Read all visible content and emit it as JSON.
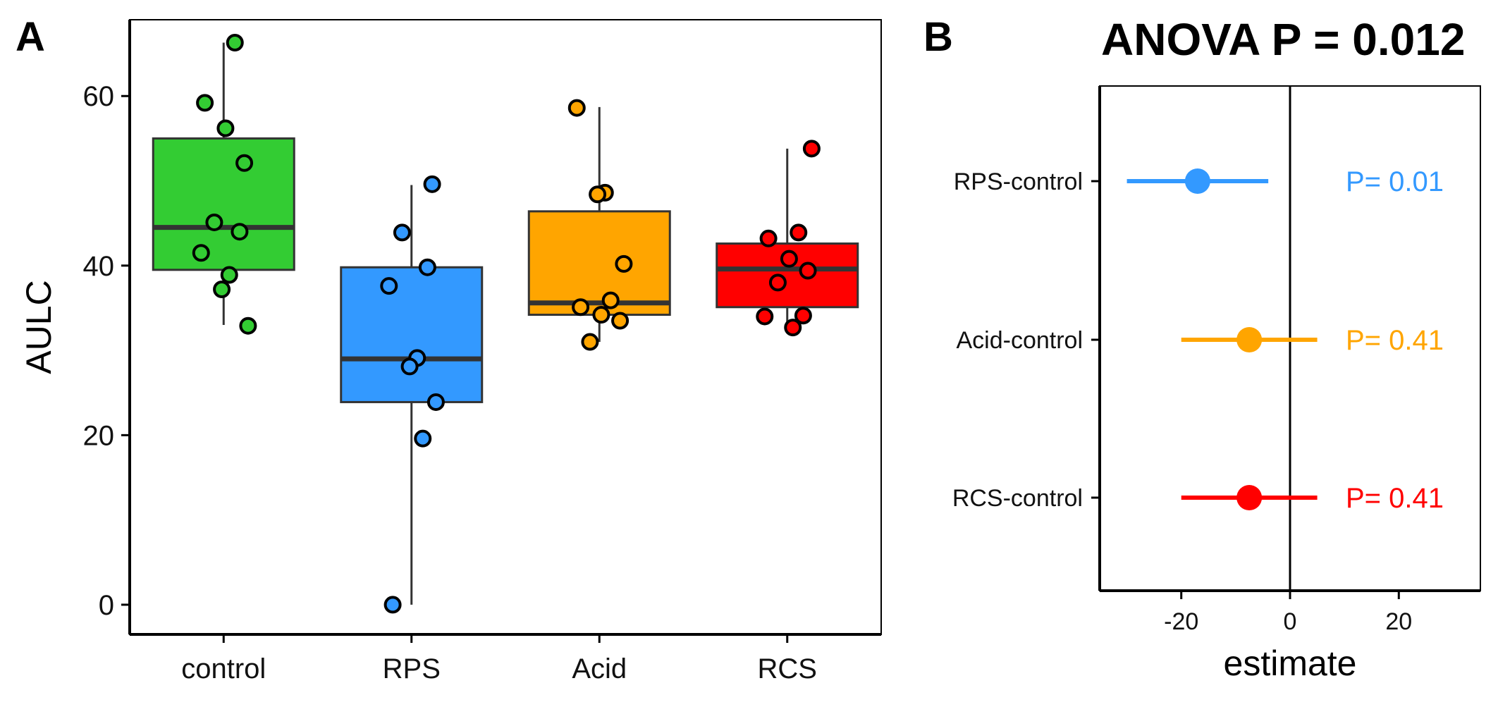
{
  "panels": {
    "a_label": "A",
    "b_label": "B"
  },
  "chart_data": [
    {
      "type": "boxplot",
      "title": "",
      "xlabel": "",
      "ylabel": "AULC",
      "ylim": [
        -3.5,
        69
      ],
      "yticks": [
        0,
        20,
        40,
        60
      ],
      "grid": false,
      "legend": "none",
      "categories": [
        "control",
        "RPS",
        "Acid",
        "RCS"
      ],
      "colors": [
        "#33cc33",
        "#3399ff",
        "#ffa500",
        "#ff0000"
      ],
      "boxes": [
        {
          "q1": 39.5,
          "median": 44.5,
          "q3": 55.0,
          "whisker_low": 33.0,
          "whisker_high": 66.3
        },
        {
          "q1": 23.9,
          "median": 29.0,
          "q3": 39.8,
          "whisker_low": 0.0,
          "whisker_high": 49.5
        },
        {
          "q1": 34.2,
          "median": 35.6,
          "q3": 46.4,
          "whisker_low": 31.0,
          "whisker_high": 58.7
        },
        {
          "q1": 35.1,
          "median": 39.6,
          "q3": 42.6,
          "whisker_low": 32.7,
          "whisker_high": 53.8
        }
      ],
      "points": [
        [
          66.3,
          59.2,
          56.2,
          52.1,
          45.1,
          44.0,
          41.5,
          38.9,
          37.2,
          32.9
        ],
        [
          49.6,
          43.9,
          39.8,
          37.6,
          29.1,
          28.1,
          23.9,
          19.6,
          0.0
        ],
        [
          58.6,
          48.6,
          48.4,
          40.2,
          35.9,
          35.1,
          34.2,
          33.5,
          31.0
        ],
        [
          53.8,
          43.9,
          43.2,
          40.8,
          39.4,
          38.0,
          34.1,
          34.0,
          32.7
        ]
      ]
    },
    {
      "type": "forest",
      "title": "ANOVA P = 0.012",
      "xlabel": "estimate",
      "ylabel": "",
      "xlim": [
        -35,
        35
      ],
      "xticks": [
        -20,
        0,
        20
      ],
      "reference_line": 0,
      "rows": [
        {
          "label": "RPS-control",
          "estimate": -17.0,
          "low": -30.0,
          "high": -4.0,
          "p_label": "P= 0.01",
          "color": "#3399ff"
        },
        {
          "label": "Acid-control",
          "estimate": -7.5,
          "low": -20.0,
          "high": 5.0,
          "p_label": "P= 0.41",
          "color": "#ffa500"
        },
        {
          "label": "RCS-control",
          "estimate": -7.5,
          "low": -20.0,
          "high": 5.0,
          "p_label": "P= 0.41",
          "color": "#ff0000"
        }
      ]
    }
  ]
}
